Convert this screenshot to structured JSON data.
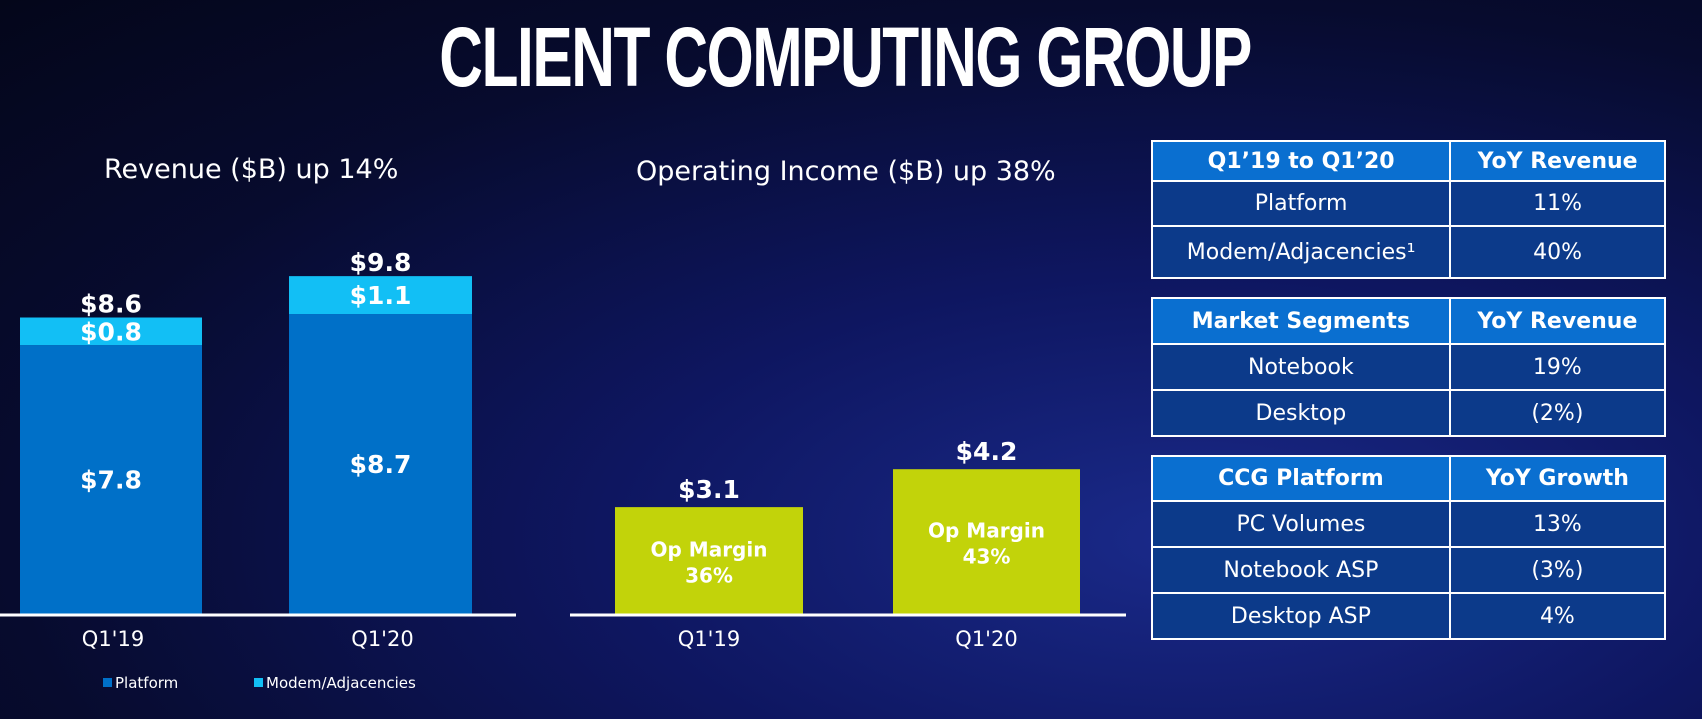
{
  "page": {
    "title": "CLIENT COMPUTING GROUP"
  },
  "colors": {
    "platform": "#0070c8",
    "modem": "#12bff5",
    "op_income": "#c2d30a",
    "axis": "#ffffff",
    "table_header": "#0a6fd0",
    "table_row": "#0c3a8a"
  },
  "chart_data": [
    {
      "type": "bar",
      "stacked": true,
      "title": "Revenue ($B) up 14%",
      "categories": [
        "Q1'19",
        "Q1'20"
      ],
      "series": [
        {
          "name": "Platform",
          "values": [
            7.8,
            8.7
          ],
          "labels": [
            "$7.8",
            "$8.7"
          ]
        },
        {
          "name": "Modem/Adjacencies",
          "values": [
            0.8,
            1.1
          ],
          "labels": [
            "$0.8",
            "$1.1"
          ]
        }
      ],
      "totals": [
        8.6,
        9.8
      ],
      "total_labels": [
        "$8.6",
        "$9.8"
      ],
      "ylim": [
        0,
        10.5
      ],
      "legend": "bottom-left"
    },
    {
      "type": "bar",
      "title": "Operating Income ($B) up 38%",
      "categories": [
        "Q1'19",
        "Q1'20"
      ],
      "values": [
        3.1,
        4.2
      ],
      "value_labels": [
        "$3.1",
        "$4.2"
      ],
      "inner_labels": [
        [
          "Op Margin",
          "36%"
        ],
        [
          "Op Margin",
          "43%"
        ]
      ],
      "ylim": [
        0,
        10.5
      ]
    }
  ],
  "tables": [
    {
      "header": [
        "Q1’19 to Q1’20",
        "YoY Revenue"
      ],
      "rows": [
        [
          "Platform",
          "11%"
        ],
        [
          "Modem/Adjacencies¹",
          "40%"
        ]
      ]
    },
    {
      "header": [
        "Market Segments",
        "YoY Revenue"
      ],
      "rows": [
        [
          "Notebook",
          "19%"
        ],
        [
          "Desktop",
          "(2%)"
        ]
      ]
    },
    {
      "header": [
        "CCG Platform",
        "YoY Growth"
      ],
      "rows": [
        [
          "PC Volumes",
          "13%"
        ],
        [
          "Notebook ASP",
          "(3%)"
        ],
        [
          "Desktop ASP",
          "4%"
        ]
      ]
    }
  ]
}
